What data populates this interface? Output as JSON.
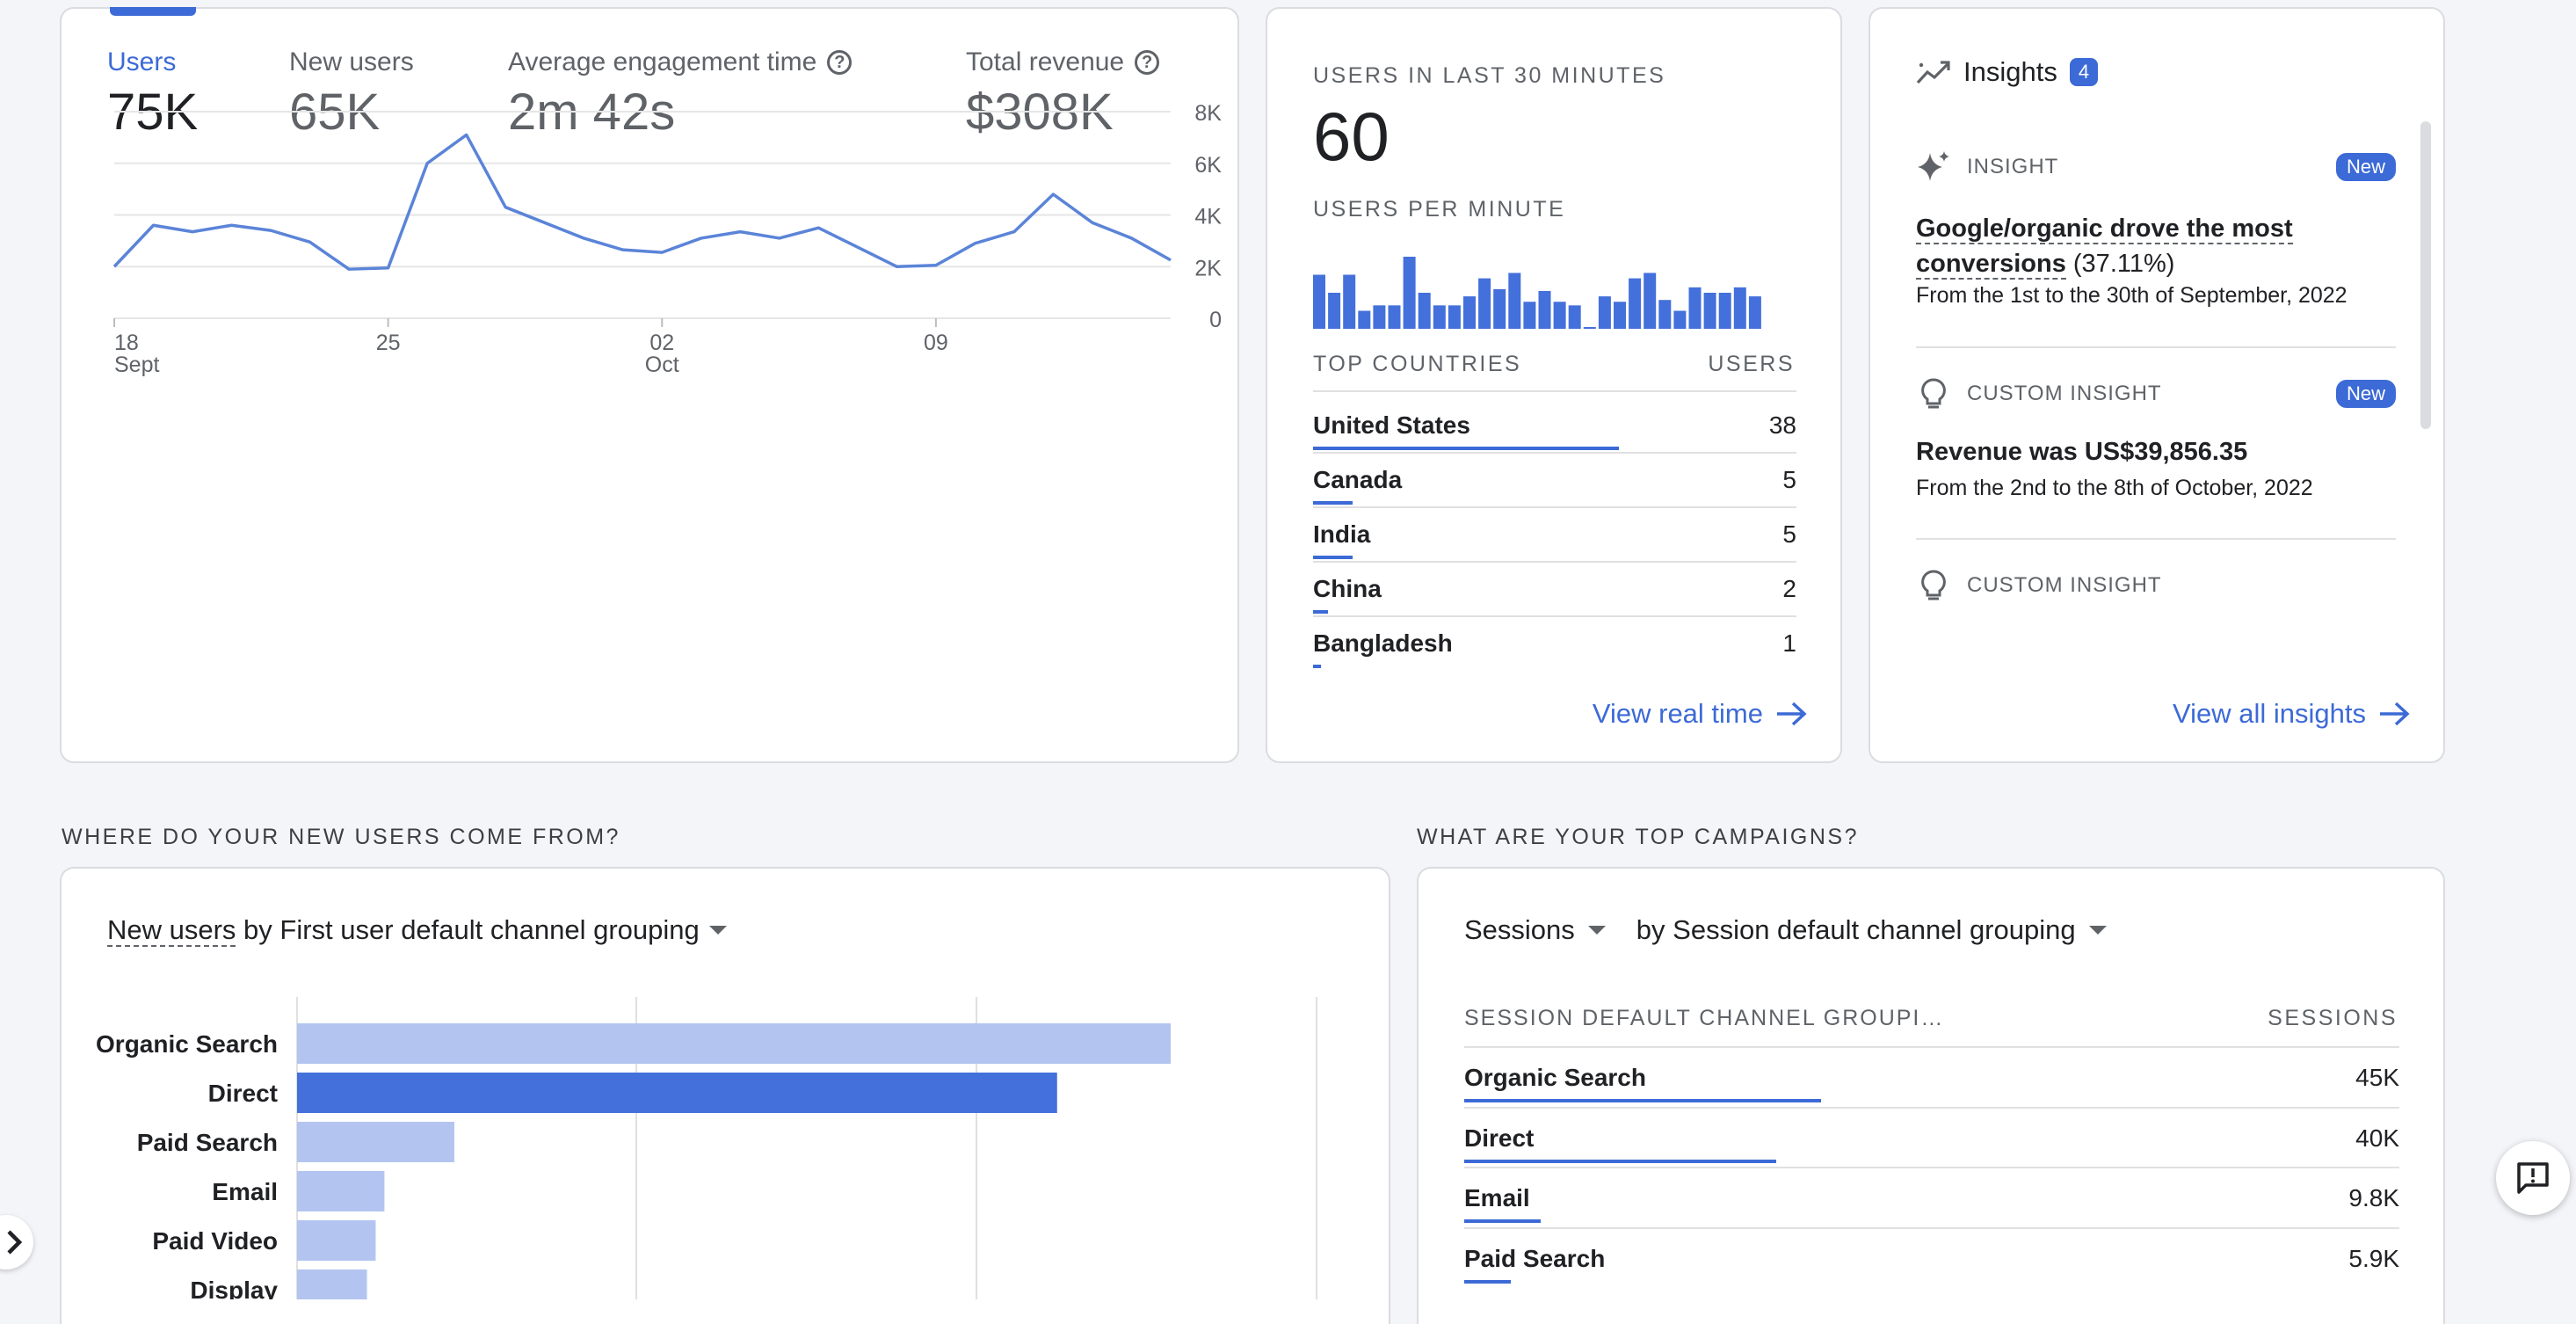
{
  "colors": {
    "accent": "#3c6ad6",
    "bar_light": "#b4c4f0",
    "bar_dark": "#4470db"
  },
  "overview": {
    "metrics": [
      {
        "label": "Users",
        "value": "75K",
        "selected": true
      },
      {
        "label": "New users",
        "value": "65K"
      },
      {
        "label": "Average engagement time",
        "value": "2m 42s",
        "help": "?"
      },
      {
        "label": "Total revenue",
        "value": "$308K",
        "help": "?"
      }
    ],
    "chart_data": {
      "type": "line",
      "y_ticks": [
        "8K",
        "6K",
        "4K",
        "2K",
        "0"
      ],
      "x_ticks": [
        {
          "day": "18",
          "month": "Sept"
        },
        {
          "day": "25",
          "month": ""
        },
        {
          "day": "02",
          "month": "Oct"
        },
        {
          "day": "09",
          "month": ""
        }
      ],
      "ylim": [
        0,
        8000
      ],
      "series": [
        {
          "values": [
            2000,
            3600,
            3350,
            3600,
            3400,
            2950,
            1900,
            1950,
            6000,
            7100,
            4300,
            3700,
            3100,
            2650,
            2550,
            3100,
            3350,
            3100,
            3500,
            2750,
            2000,
            2050,
            2900,
            3350,
            4800,
            3700,
            3100,
            2250
          ]
        }
      ]
    }
  },
  "realtime": {
    "title": "USERS IN LAST 30 MINUTES",
    "count": "60",
    "per_minute_label": "USERS PER MINUTE",
    "per_minute_values": [
      3,
      2,
      3,
      1,
      1.3,
      1.3,
      4,
      2,
      1.3,
      1.3,
      1.8,
      2.8,
      2.2,
      3.1,
      1.5,
      2.1,
      1.5,
      1.3,
      0.1,
      1.8,
      1.5,
      2.8,
      3.1,
      1.6,
      1,
      2.3,
      2,
      2,
      2.3,
      1.8
    ],
    "countries_header": "TOP COUNTRIES",
    "users_header": "USERS",
    "countries": [
      {
        "name": "United States",
        "value": "38",
        "share": 1.0
      },
      {
        "name": "Canada",
        "value": "5",
        "share": 0.13
      },
      {
        "name": "India",
        "value": "5",
        "share": 0.13
      },
      {
        "name": "China",
        "value": "2",
        "share": 0.05
      },
      {
        "name": "Bangladesh",
        "value": "1",
        "share": 0.026
      }
    ],
    "view_link": "View real time"
  },
  "insights": {
    "title": "Insights",
    "count": "4",
    "items": [
      {
        "type": "INSIGHT",
        "badge": "New",
        "title_underlined": "Google/organic drove the most conversions",
        "title_rest": " (37.11%)",
        "subtitle": "From the 1st to the 30th of September, 2022"
      },
      {
        "type": "CUSTOM INSIGHT",
        "badge": "New",
        "title": "Revenue was US$39,856.35",
        "subtitle": "From the 2nd to the 8th of October, 2022"
      },
      {
        "type": "CUSTOM INSIGHT"
      }
    ],
    "view_link": "View all insights"
  },
  "new_users_section": {
    "heading": "WHERE DO YOUR NEW USERS COME FROM?",
    "selector_metric": "New users",
    "selector_rest": " by First user default channel grouping",
    "bars": [
      {
        "label": "Organic Search",
        "value": 100,
        "highlight": false
      },
      {
        "label": "Direct",
        "value": 87,
        "highlight": true
      },
      {
        "label": "Paid Search",
        "value": 18,
        "highlight": false
      },
      {
        "label": "Email",
        "value": 10,
        "highlight": false
      },
      {
        "label": "Paid Video",
        "value": 9,
        "highlight": false
      },
      {
        "label": "Display",
        "value": 8,
        "highlight": false
      }
    ]
  },
  "campaigns_section": {
    "heading": "WHAT ARE YOUR TOP CAMPAIGNS?",
    "selector_metric": "Sessions",
    "selector_dimension": "by Session default channel grouping",
    "col_left": "SESSION DEFAULT CHANNEL GROUPI…",
    "col_right": "SESSIONS",
    "rows": [
      {
        "name": "Organic Search",
        "value": "45K",
        "share": 1.0
      },
      {
        "name": "Direct",
        "value": "40K",
        "share": 0.875
      },
      {
        "name": "Email",
        "value": "9.8K",
        "share": 0.215
      },
      {
        "name": "Paid Search",
        "value": "5.9K",
        "share": 0.13
      }
    ]
  }
}
